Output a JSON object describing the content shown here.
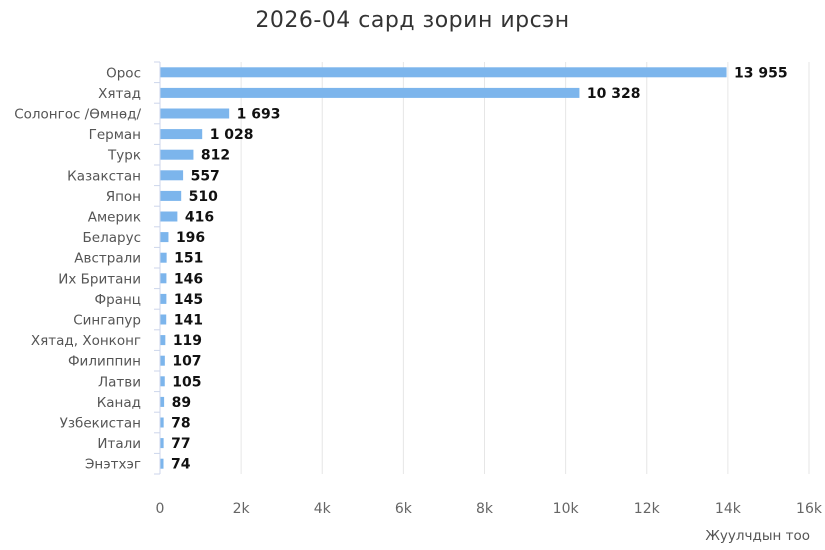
{
  "chart_data": {
    "type": "bar",
    "orientation": "horizontal",
    "title": "2026-04 сард зорин ирсэн",
    "xlabel": "Жуулчдын тоо",
    "categories": [
      "Орос",
      "Хятад",
      "Солонгос /Өмнөд/",
      "Герман",
      "Турк",
      "Казакстан",
      "Япон",
      "Америк",
      "Беларус",
      "Австрали",
      "Их Британи",
      "Франц",
      "Сингапур",
      "Хятад, Хонконг",
      "Филиппин",
      "Латви",
      "Канад",
      "Узбекистан",
      "Итали",
      "Энэтхэг"
    ],
    "values": [
      13955,
      10328,
      1693,
      1028,
      812,
      557,
      510,
      416,
      196,
      151,
      146,
      145,
      141,
      119,
      107,
      105,
      89,
      78,
      77,
      74
    ],
    "value_labels": [
      "13 955",
      "10 328",
      "1 693",
      "1 028",
      "812",
      "557",
      "510",
      "416",
      "196",
      "151",
      "146",
      "145",
      "141",
      "119",
      "107",
      "105",
      "89",
      "78",
      "77",
      "74"
    ],
    "xlim": [
      0,
      16000
    ],
    "xticks": [
      0,
      2000,
      4000,
      6000,
      8000,
      10000,
      12000,
      14000,
      16000
    ],
    "xtick_labels": [
      "0",
      "2k",
      "4k",
      "6k",
      "8k",
      "10k",
      "12k",
      "14k",
      "16k"
    ],
    "grid": true,
    "legend": "none",
    "bar_color": "#7cb5ec"
  }
}
